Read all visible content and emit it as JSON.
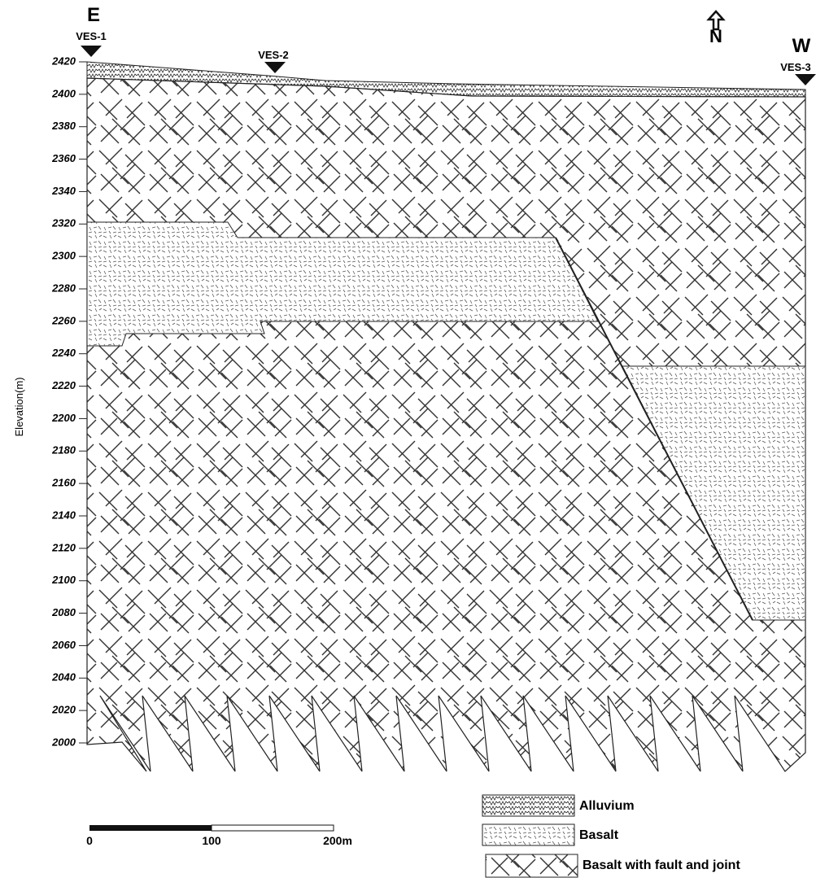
{
  "header": {
    "east": "E",
    "west": "W",
    "north": "N"
  },
  "stations": [
    {
      "label": "VES-1"
    },
    {
      "label": "VES-2"
    },
    {
      "label": "VES-3"
    }
  ],
  "axis": {
    "label": "Elevation(m)",
    "lim": [
      2000,
      2420
    ],
    "ticks": [
      2000,
      2020,
      2040,
      2060,
      2080,
      2100,
      2120,
      2140,
      2160,
      2180,
      2200,
      2220,
      2240,
      2260,
      2280,
      2300,
      2320,
      2340,
      2360,
      2380,
      2400,
      2420
    ]
  },
  "legend": [
    {
      "label": "Alluvium"
    },
    {
      "label": "Basalt"
    },
    {
      "label": "Basalt with fault and joint"
    }
  ],
  "scale_bar": {
    "labels": [
      "0",
      "100",
      "200m"
    ]
  }
}
